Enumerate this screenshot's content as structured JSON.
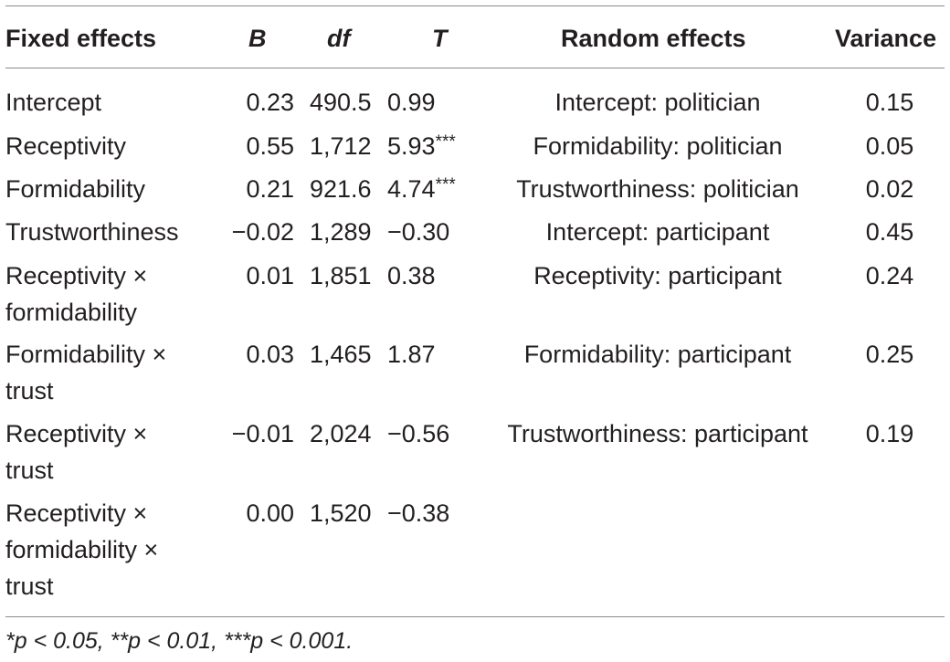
{
  "headers": {
    "fixed_effects": "Fixed effects",
    "b": "B",
    "df": "df",
    "t": "T",
    "random_effects": "Random effects",
    "variance": "Variance"
  },
  "rows": [
    {
      "label": [
        "Intercept"
      ],
      "b": "0.23",
      "df": "490.5",
      "t": "0.99",
      "t_sig": "",
      "random_effect": "Intercept: politician",
      "variance": "0.15"
    },
    {
      "label": [
        "Receptivity"
      ],
      "b": "0.55",
      "df": "1,712",
      "t": "5.93",
      "t_sig": "***",
      "random_effect": "Formidability: politician",
      "variance": "0.05"
    },
    {
      "label": [
        "Formidability"
      ],
      "b": "0.21",
      "df": "921.6",
      "t": "4.74",
      "t_sig": "***",
      "random_effect": "Trustworthiness: politician",
      "variance": "0.02"
    },
    {
      "label": [
        "Trustworthiness"
      ],
      "b": "−0.02",
      "df": "1,289",
      "t": "−0.30",
      "t_sig": "",
      "random_effect": "Intercept: participant",
      "variance": "0.45"
    },
    {
      "label": [
        "Receptivity ×",
        "formidability"
      ],
      "b": "0.01",
      "df": "1,851",
      "t": "0.38",
      "t_sig": "",
      "random_effect": "Receptivity: participant",
      "variance": "0.24"
    },
    {
      "label": [
        "Formidability ×",
        "trust"
      ],
      "b": "0.03",
      "df": "1,465",
      "t": "1.87",
      "t_sig": "",
      "random_effect": "Formidability: participant",
      "variance": "0.25"
    },
    {
      "label": [
        "Receptivity ×",
        "trust"
      ],
      "b": "−0.01",
      "df": "2,024",
      "t": "−0.56",
      "t_sig": "",
      "random_effect": "Trustworthiness: participant",
      "variance": "0.19"
    },
    {
      "label": [
        "Receptivity ×",
        "formidability ×",
        "trust"
      ],
      "b": "0.00",
      "df": "1,520",
      "t": "−0.38",
      "t_sig": "",
      "random_effect": "",
      "variance": ""
    }
  ],
  "footnote": "*p < 0.05, **p < 0.01, ***p < 0.001."
}
